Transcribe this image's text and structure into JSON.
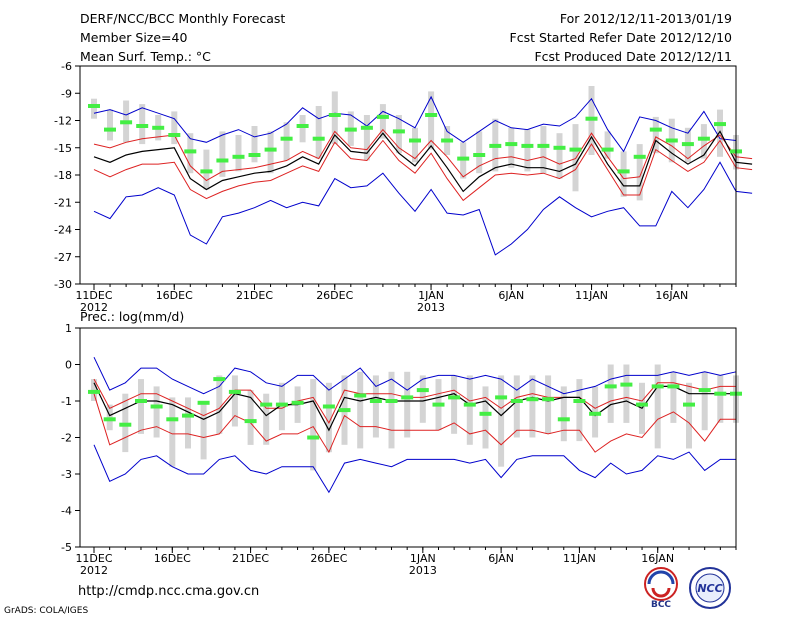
{
  "header": {
    "title": "DERF/NCC/BCC Monthly Forecast",
    "member": "Member Size=40",
    "variable": "Mean Surf. Temp.: °C",
    "period": "For 2012/12/11-2013/01/19",
    "refer": "Fcst Started Refer Date 2012/12/10",
    "produced": "Fcst Produced Date 2012/12/11"
  },
  "footer": {
    "url": "http://cmdp.ncc.cma.gov.cn",
    "grads": "GrADS: COLA/IGES",
    "logo_bcc": "BCC",
    "logo_ncc": "NCC"
  },
  "colors": {
    "box": "#d4d4d4",
    "median": "#44ee44",
    "mean": "#000000",
    "spread": "#dd2222",
    "extreme": "#0000cc"
  },
  "chart_data": [
    {
      "type": "line",
      "title": "Mean Surf. Temp.: °C",
      "ylabel": "°C",
      "ylim": [
        -30,
        -6
      ],
      "yticks": [
        -6,
        -9,
        -12,
        -15,
        -18,
        -21,
        -24,
        -27,
        -30
      ],
      "x_ticks": [
        {
          "day": 0,
          "label": "11DEC",
          "sub": "2012"
        },
        {
          "day": 5,
          "label": "16DEC",
          "sub": ""
        },
        {
          "day": 10,
          "label": "21DEC",
          "sub": ""
        },
        {
          "day": 15,
          "label": "26DEC",
          "sub": ""
        },
        {
          "day": 21,
          "label": "1JAN",
          "sub": "2013"
        },
        {
          "day": 26,
          "label": "6JAN",
          "sub": ""
        },
        {
          "day": 31,
          "label": "11JAN",
          "sub": ""
        },
        {
          "day": 36,
          "label": "16JAN",
          "sub": ""
        }
      ],
      "series": [
        {
          "name": "max",
          "values": [
            -11.2,
            -10.8,
            -11.4,
            -10.6,
            -11.2,
            -11.8,
            -14.0,
            -14.4,
            -13.6,
            -13.0,
            -13.8,
            -13.4,
            -12.4,
            -10.6,
            -11.8,
            -11.2,
            -11.4,
            -12.6,
            -11.0,
            -11.8,
            -12.8,
            -9.4,
            -13.2,
            -14.4,
            -13.2,
            -12.0,
            -12.8,
            -13.0,
            -12.4,
            -12.6,
            -11.6,
            -9.6,
            -13.0,
            -15.4,
            -11.6,
            -12.0,
            -12.8,
            -13.4,
            -11.0,
            -14.0,
            -14.2
          ]
        },
        {
          "name": "upper",
          "values": [
            -14.6,
            -15.0,
            -14.4,
            -14.0,
            -13.8,
            -13.6,
            -17.0,
            -18.6,
            -17.6,
            -17.4,
            -17.2,
            -16.8,
            -16.4,
            -15.4,
            -16.2,
            -13.2,
            -15.0,
            -15.2,
            -13.0,
            -15.0,
            -16.2,
            -14.2,
            -16.0,
            -18.2,
            -17.0,
            -16.2,
            -16.0,
            -16.4,
            -16.0,
            -16.8,
            -16.2,
            -13.4,
            -16.0,
            -18.4,
            -18.2,
            -13.8,
            -14.8,
            -16.2,
            -14.8,
            -13.6,
            -16.0,
            -16.2
          ]
        },
        {
          "name": "mean",
          "values": [
            -16.0,
            -16.6,
            -15.8,
            -15.4,
            -15.2,
            -15.0,
            -18.4,
            -19.6,
            -18.6,
            -18.2,
            -17.8,
            -17.6,
            -17.0,
            -16.0,
            -16.8,
            -13.6,
            -15.4,
            -15.6,
            -13.4,
            -15.6,
            -17.0,
            -14.8,
            -17.2,
            -19.8,
            -18.2,
            -17.2,
            -16.8,
            -17.2,
            -17.2,
            -17.6,
            -16.8,
            -13.8,
            -16.8,
            -19.2,
            -19.2,
            -14.2,
            -15.6,
            -16.8,
            -15.8,
            -13.2,
            -16.6,
            -16.8
          ]
        },
        {
          "name": "lower",
          "values": [
            -17.4,
            -18.2,
            -17.4,
            -16.8,
            -16.8,
            -16.6,
            -19.6,
            -20.6,
            -19.8,
            -19.2,
            -18.8,
            -18.6,
            -17.8,
            -17.0,
            -17.6,
            -14.4,
            -16.2,
            -16.4,
            -14.2,
            -16.4,
            -17.8,
            -15.6,
            -18.4,
            -20.8,
            -19.4,
            -18.0,
            -17.8,
            -18.0,
            -17.8,
            -18.4,
            -17.4,
            -14.6,
            -17.4,
            -20.2,
            -20.2,
            -15.2,
            -16.4,
            -17.6,
            -16.6,
            -14.2,
            -17.2,
            -17.4
          ]
        },
        {
          "name": "min",
          "values": [
            -22.0,
            -22.8,
            -20.4,
            -20.2,
            -19.4,
            -20.2,
            -24.6,
            -25.6,
            -22.6,
            -22.2,
            -21.6,
            -20.8,
            -21.6,
            -21.0,
            -21.4,
            -18.4,
            -19.4,
            -19.2,
            -17.8,
            -20.0,
            -22.0,
            -19.6,
            -22.2,
            -22.4,
            -21.8,
            -26.8,
            -25.6,
            -24.0,
            -21.8,
            -20.4,
            -21.6,
            -22.6,
            -22.0,
            -21.6,
            -23.6,
            -23.6,
            -19.8,
            -21.6,
            -19.6,
            -16.6,
            -19.8,
            -20.0
          ]
        },
        {
          "name": "median",
          "values": [
            -10.4,
            -13.0,
            -12.2,
            -12.6,
            -12.8,
            -13.6,
            -15.4,
            -17.6,
            -16.4,
            -16.0,
            -15.8,
            -15.2,
            -14.0,
            -12.6,
            -14.0,
            -11.4,
            -13.0,
            -12.8,
            -11.6,
            -13.2,
            -14.2,
            -11.4,
            -14.2,
            -16.2,
            -15.8,
            -14.8,
            -14.6,
            -14.8,
            -14.8,
            -15.0,
            -15.2,
            -11.8,
            -15.2,
            -17.6,
            -16.0,
            -13.0,
            -14.2,
            -14.6,
            -14.0,
            -12.4,
            -15.4,
            -15.4
          ]
        },
        {
          "name": "box_top",
          "values": [
            -9.6,
            -10.8,
            -9.8,
            -10.2,
            -11.4,
            -11.0,
            -13.4,
            -15.2,
            -13.2,
            -13.6,
            -12.6,
            -13.2,
            -12.2,
            -11.4,
            -10.4,
            -8.8,
            -11.0,
            -11.4,
            -10.2,
            -11.4,
            -12.8,
            -8.8,
            -12.6,
            -14.4,
            -13.2,
            -11.8,
            -12.8,
            -13.0,
            -12.6,
            -13.4,
            -12.4,
            -8.2,
            -13.2,
            -15.4,
            -14.6,
            -11.6,
            -11.8,
            -12.8,
            -12.4,
            -10.8,
            -13.6,
            -13.6
          ]
        },
        {
          "name": "box_bottom",
          "values": [
            -11.8,
            -14.2,
            -14.4,
            -14.6,
            -14.2,
            -14.6,
            -17.8,
            -19.6,
            -18.2,
            -17.6,
            -16.6,
            -17.8,
            -16.4,
            -14.4,
            -16.2,
            -14.6,
            -14.8,
            -16.4,
            -14.0,
            -15.6,
            -16.6,
            -15.2,
            -15.8,
            -18.4,
            -17.8,
            -17.6,
            -17.2,
            -17.6,
            -17.8,
            -18.4,
            -19.8,
            -15.8,
            -16.2,
            -20.4,
            -20.8,
            -15.6,
            -16.6,
            -16.6,
            -16.2,
            -16.0,
            -17.4,
            -17.4
          ]
        }
      ]
    },
    {
      "type": "line",
      "title": "Prec.: log(mm/d)",
      "ylabel": "log(mm/d)",
      "ylim": [
        -5,
        1
      ],
      "yticks": [
        1,
        0,
        -1,
        -2,
        -3,
        -4,
        -5
      ],
      "x_ticks": [
        {
          "day": 0,
          "label": "11DEC",
          "sub": "2012"
        },
        {
          "day": 5,
          "label": "16DEC",
          "sub": ""
        },
        {
          "day": 10,
          "label": "21DEC",
          "sub": ""
        },
        {
          "day": 15,
          "label": "26DEC",
          "sub": ""
        },
        {
          "day": 21,
          "label": "1JAN",
          "sub": "2013"
        },
        {
          "day": 26,
          "label": "6JAN",
          "sub": ""
        },
        {
          "day": 31,
          "label": "11JAN",
          "sub": ""
        },
        {
          "day": 36,
          "label": "16JAN",
          "sub": ""
        }
      ],
      "series": [
        {
          "name": "max",
          "values": [
            0.2,
            -0.7,
            -0.5,
            -0.1,
            -0.1,
            -0.4,
            -0.6,
            -0.8,
            -0.6,
            -0.1,
            -0.2,
            -0.5,
            -0.6,
            -0.3,
            -0.3,
            -0.7,
            -0.4,
            -0.1,
            -0.6,
            -0.4,
            -0.7,
            -0.4,
            -0.3,
            -0.3,
            -0.4,
            -0.3,
            -0.4,
            -0.7,
            -0.4,
            -0.6,
            -0.8,
            -0.7,
            -0.6,
            -0.4,
            -0.3,
            -0.3,
            -0.3,
            -0.2,
            -0.3,
            -0.2,
            -0.3,
            -0.2
          ]
        },
        {
          "name": "upper",
          "values": [
            -0.4,
            -1.2,
            -1.0,
            -0.8,
            -0.8,
            -1.0,
            -1.2,
            -1.4,
            -1.2,
            -0.7,
            -0.7,
            -1.2,
            -1.2,
            -1.0,
            -0.9,
            -1.6,
            -0.7,
            -0.8,
            -0.8,
            -0.8,
            -0.9,
            -0.9,
            -0.8,
            -0.7,
            -1.0,
            -0.9,
            -1.2,
            -0.9,
            -0.8,
            -0.9,
            -0.9,
            -0.9,
            -1.2,
            -1.0,
            -0.9,
            -1.0,
            -0.5,
            -0.5,
            -0.6,
            -0.7,
            -0.6,
            -0.6
          ]
        },
        {
          "name": "mean",
          "values": [
            -0.5,
            -1.4,
            -1.2,
            -1.0,
            -1.0,
            -1.1,
            -1.3,
            -1.5,
            -1.3,
            -0.8,
            -0.9,
            -1.4,
            -1.1,
            -1.1,
            -1.0,
            -1.8,
            -0.9,
            -1.0,
            -0.9,
            -1.0,
            -1.0,
            -1.0,
            -0.9,
            -0.8,
            -1.1,
            -1.0,
            -1.4,
            -1.0,
            -0.9,
            -1.0,
            -0.9,
            -0.9,
            -1.4,
            -1.1,
            -1.0,
            -1.2,
            -0.6,
            -0.6,
            -0.8,
            -0.8,
            -0.8,
            -0.8
          ]
        },
        {
          "name": "lower",
          "values": [
            -0.8,
            -2.2,
            -2.0,
            -1.8,
            -1.7,
            -1.9,
            -1.9,
            -2.0,
            -1.9,
            -1.4,
            -1.6,
            -2.1,
            -1.9,
            -1.9,
            -1.7,
            -2.4,
            -1.4,
            -1.7,
            -1.7,
            -1.8,
            -1.8,
            -1.8,
            -1.8,
            -1.6,
            -1.9,
            -1.8,
            -2.2,
            -1.8,
            -1.8,
            -1.9,
            -1.8,
            -1.8,
            -2.4,
            -2.1,
            -1.9,
            -2.0,
            -1.5,
            -1.3,
            -1.6,
            -2.1,
            -1.5,
            -1.5
          ]
        },
        {
          "name": "min",
          "values": [
            -2.2,
            -3.2,
            -3.0,
            -2.6,
            -2.5,
            -2.8,
            -3.0,
            -3.0,
            -2.6,
            -2.5,
            -2.9,
            -3.0,
            -2.8,
            -2.8,
            -2.8,
            -3.5,
            -2.7,
            -2.6,
            -2.7,
            -2.8,
            -2.6,
            -2.6,
            -2.6,
            -2.6,
            -2.7,
            -2.6,
            -3.1,
            -2.6,
            -2.5,
            -2.5,
            -2.5,
            -2.9,
            -3.1,
            -2.7,
            -3.0,
            -2.9,
            -2.5,
            -2.6,
            -2.4,
            -2.9,
            -2.6,
            -2.6
          ]
        },
        {
          "name": "median",
          "values": [
            -0.75,
            -1.5,
            -1.65,
            -1.0,
            -1.15,
            -1.5,
            -1.4,
            -1.05,
            -0.4,
            -0.75,
            -1.55,
            -1.1,
            -1.1,
            -1.05,
            -2.0,
            -1.15,
            -1.25,
            -0.85,
            -1.0,
            -1.0,
            -0.9,
            -0.7,
            -1.1,
            -0.9,
            -1.1,
            -1.35,
            -0.9,
            -1.0,
            -0.95,
            -0.95,
            -1.5,
            -1.0,
            -1.35,
            -0.6,
            -0.55,
            -1.1,
            -0.6,
            -0.6,
            -1.1,
            -0.7,
            -0.8,
            -0.8
          ]
        },
        {
          "name": "box_top",
          "values": [
            -0.4,
            -1.1,
            -0.8,
            -0.4,
            -0.6,
            -0.9,
            -0.9,
            -1.1,
            -0.3,
            -0.3,
            -0.7,
            -0.8,
            -0.5,
            -0.6,
            -0.4,
            -0.5,
            -0.3,
            -0.2,
            -0.3,
            -0.2,
            -0.2,
            -0.3,
            -0.4,
            -0.3,
            -0.3,
            -0.6,
            -0.3,
            -0.3,
            -0.3,
            -0.3,
            -0.6,
            -0.4,
            -0.6,
            -0.0,
            -0.0,
            -0.5,
            -0.0,
            -0.2,
            -0.5,
            -0.2,
            -0.3,
            -0.3
          ]
        },
        {
          "name": "box_bottom",
          "values": [
            -1.0,
            -1.8,
            -2.4,
            -1.9,
            -2.0,
            -2.8,
            -2.3,
            -2.6,
            -1.9,
            -1.7,
            -2.2,
            -2.2,
            -1.8,
            -1.6,
            -2.9,
            -2.4,
            -2.2,
            -2.3,
            -2.0,
            -2.3,
            -2.0,
            -1.6,
            -1.8,
            -1.9,
            -2.2,
            -2.3,
            -2.8,
            -2.0,
            -2.0,
            -1.9,
            -2.1,
            -2.1,
            -2.0,
            -1.6,
            -1.6,
            -1.9,
            -2.3,
            -1.6,
            -2.3,
            -1.8,
            -1.6,
            -1.6
          ]
        }
      ]
    }
  ]
}
